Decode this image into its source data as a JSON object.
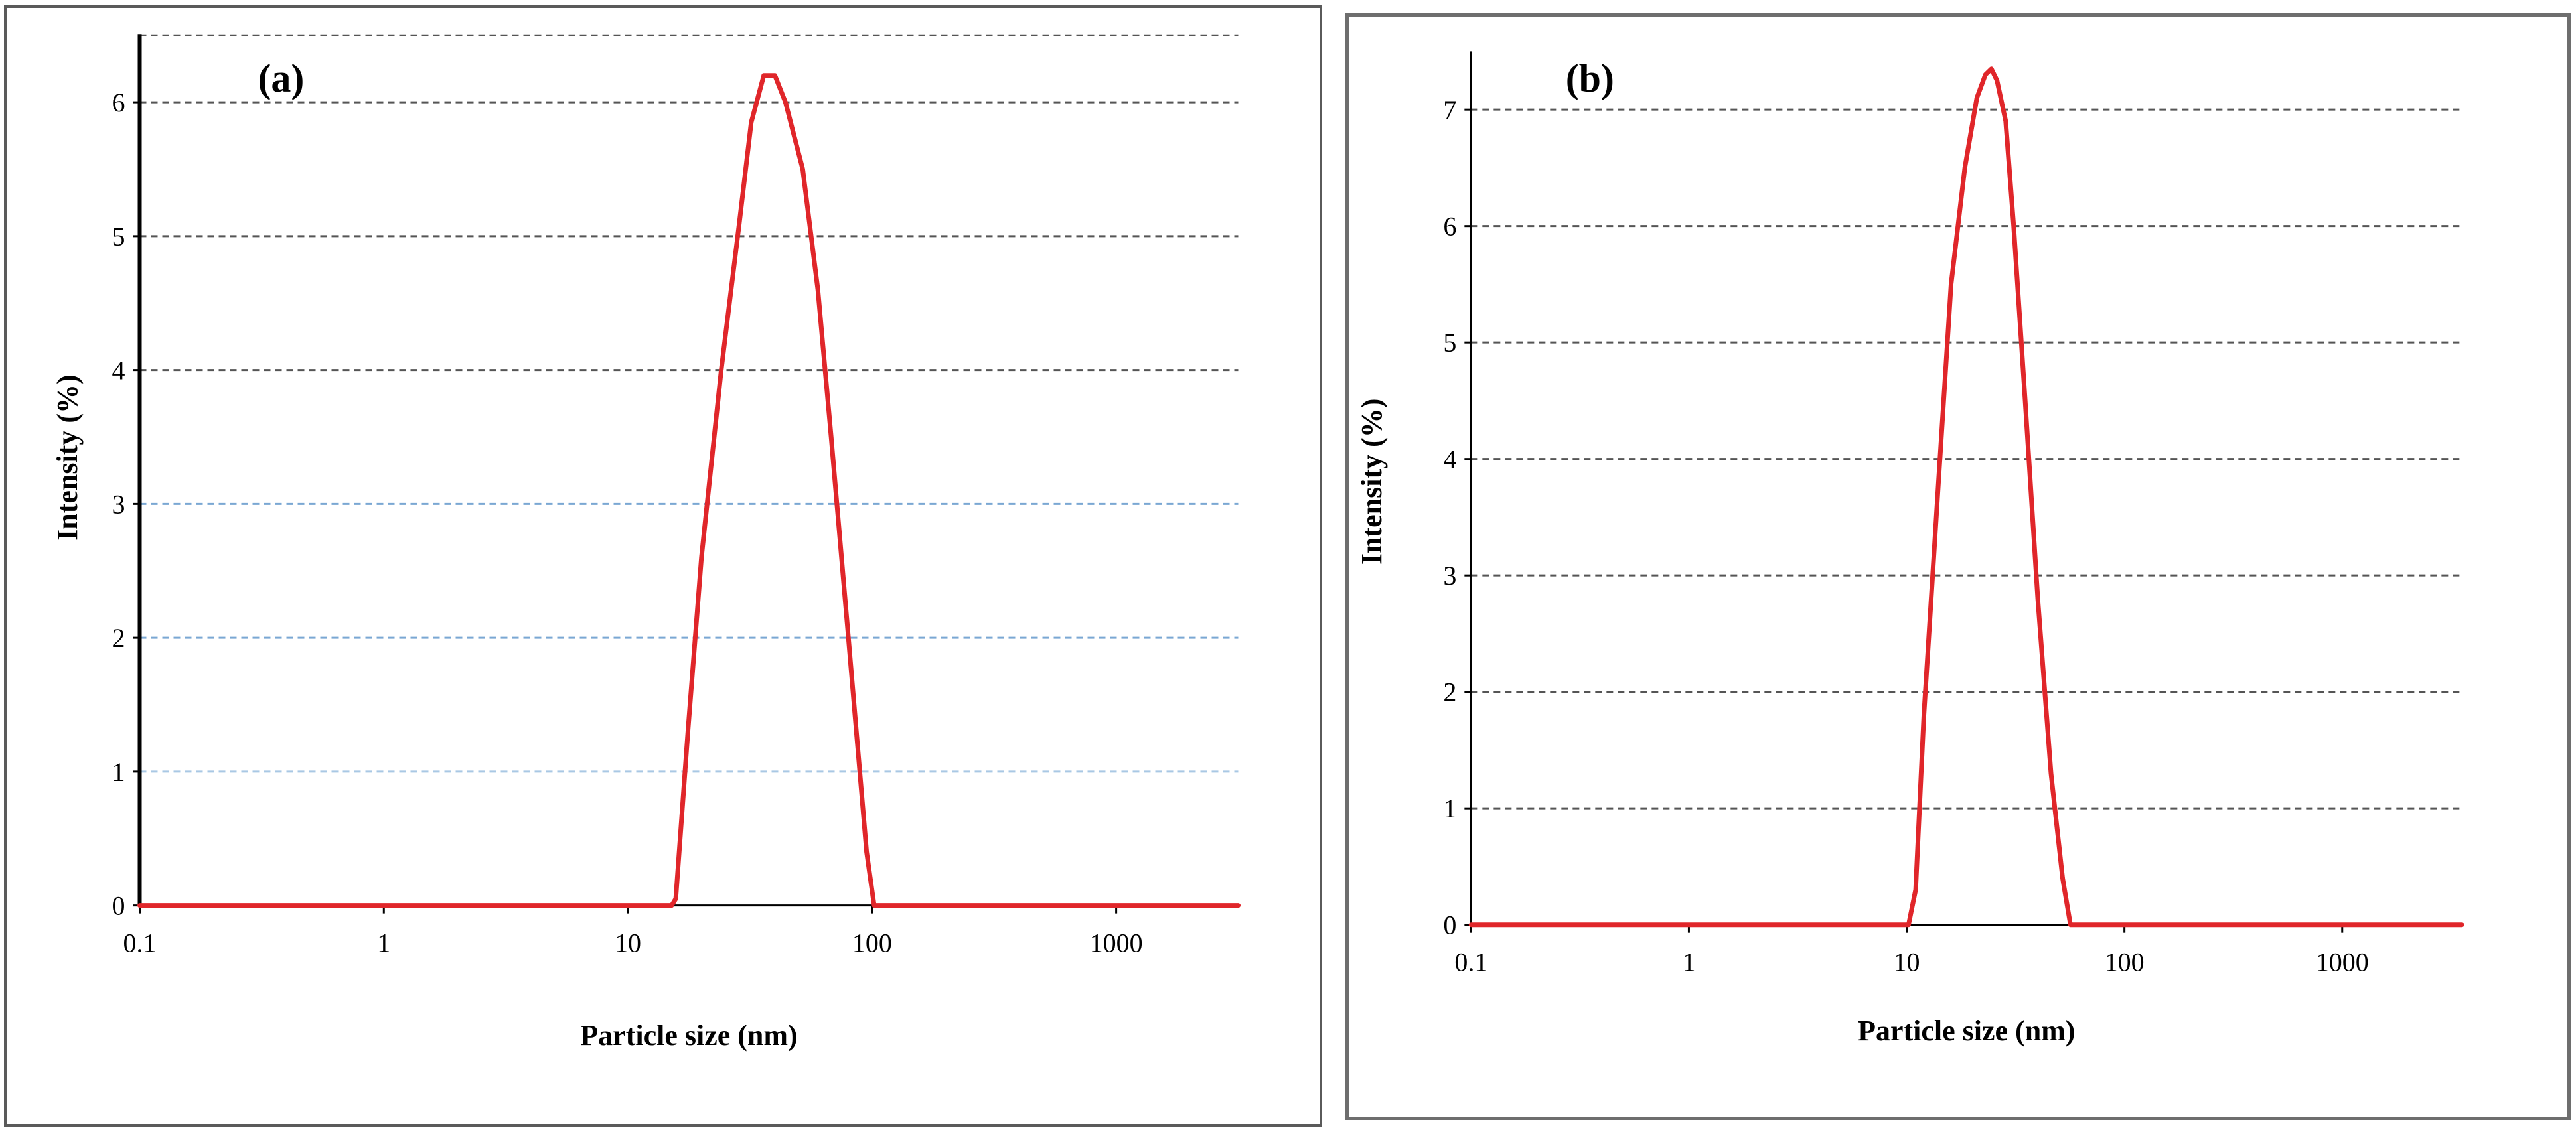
{
  "chart_data": [
    {
      "panel_label": "(a)",
      "type": "line",
      "x_scale": "log",
      "xlabel": "Particle size (nm)",
      "ylabel": "Intensity (%)",
      "x_ticks": [
        "0.1",
        "1",
        "10",
        "100",
        "1000"
      ],
      "y_ticks": [
        "0",
        "1",
        "2",
        "3",
        "4",
        "5",
        "6"
      ],
      "xlim": [
        0.1,
        3162
      ],
      "ylim": [
        0,
        6.5
      ],
      "grid": "horizontal dashed",
      "line_color": "#e0262a",
      "series": [
        {
          "x": [
            0.1,
            15.1,
            15.7,
            17.6,
            20.0,
            24.1,
            28.6,
            32.0,
            36.0,
            40.0,
            44.2,
            52.0,
            60.0,
            68.0,
            80.0,
            95.0,
            102.0,
            3162
          ],
          "y": [
            0,
            0,
            0.05,
            1.3,
            2.6,
            4.0,
            5.1,
            5.85,
            6.2,
            6.2,
            6.0,
            5.5,
            4.6,
            3.5,
            2.0,
            0.4,
            0,
            0
          ]
        }
      ]
    },
    {
      "panel_label": "(b)",
      "type": "line",
      "x_scale": "log",
      "xlabel": "Particle size (nm)",
      "ylabel": "Intensity (%)",
      "x_ticks": [
        "0.1",
        "1",
        "10",
        "100",
        "1000"
      ],
      "y_ticks": [
        "0",
        "1",
        "2",
        "3",
        "4",
        "5",
        "6",
        "7"
      ],
      "xlim": [
        0.1,
        3548
      ],
      "ylim": [
        0,
        7.5
      ],
      "grid": "horizontal dashed",
      "line_color": "#e0262a",
      "series": [
        {
          "x": [
            0.1,
            10.2,
            11.0,
            12.0,
            14.0,
            16.0,
            18.5,
            21.0,
            23.0,
            24.5,
            26.0,
            28.5,
            31.0,
            35.0,
            40.0,
            46.0,
            52.0,
            56.5,
            3548
          ],
          "y": [
            0,
            0,
            0.3,
            1.8,
            3.8,
            5.5,
            6.5,
            7.1,
            7.3,
            7.35,
            7.25,
            6.9,
            6.0,
            4.5,
            2.8,
            1.3,
            0.4,
            0,
            0
          ]
        }
      ]
    }
  ]
}
